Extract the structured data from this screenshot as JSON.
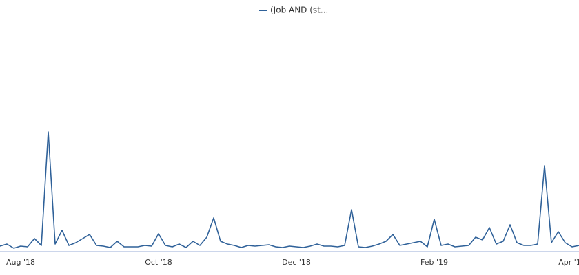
{
  "chart_data": {
    "type": "line",
    "categories": [
      null,
      null,
      null,
      "Aug '18",
      null,
      null,
      null,
      null,
      null,
      null,
      null,
      null,
      null,
      null,
      null,
      null,
      null,
      null,
      null,
      null,
      null,
      null,
      null,
      "Oct '18",
      null,
      null,
      null,
      null,
      null,
      null,
      null,
      null,
      null,
      null,
      null,
      null,
      null,
      null,
      null,
      null,
      null,
      null,
      null,
      "Dec '18",
      null,
      null,
      null,
      null,
      null,
      null,
      null,
      null,
      null,
      null,
      null,
      null,
      null,
      null,
      null,
      null,
      null,
      null,
      null,
      "Feb '19",
      null,
      null,
      null,
      null,
      null,
      null,
      null,
      null,
      null,
      null,
      null,
      null,
      null,
      null,
      null,
      null,
      null,
      null,
      null,
      "Apr '19",
      null
    ],
    "series": [
      {
        "name": "(Job AND (st...",
        "color": "#2f6199",
        "values": [
          7,
          10,
          4,
          7,
          6,
          18,
          8,
          173,
          10,
          30,
          8,
          12,
          18,
          24,
          8,
          7,
          5,
          14,
          6,
          6,
          6,
          8,
          7,
          25,
          8,
          6,
          10,
          5,
          14,
          8,
          20,
          48,
          14,
          10,
          8,
          5,
          8,
          7,
          8,
          9,
          6,
          5,
          7,
          6,
          5,
          7,
          10,
          7,
          7,
          6,
          8,
          60,
          6,
          5,
          7,
          10,
          14,
          24,
          8,
          10,
          12,
          14,
          6,
          46,
          8,
          10,
          6,
          7,
          8,
          20,
          16,
          34,
          10,
          14,
          38,
          12,
          8,
          8,
          10,
          124,
          12,
          28,
          12,
          6,
          8
        ]
      }
    ],
    "ylim": [
      0,
      345
    ],
    "legend": "top"
  }
}
